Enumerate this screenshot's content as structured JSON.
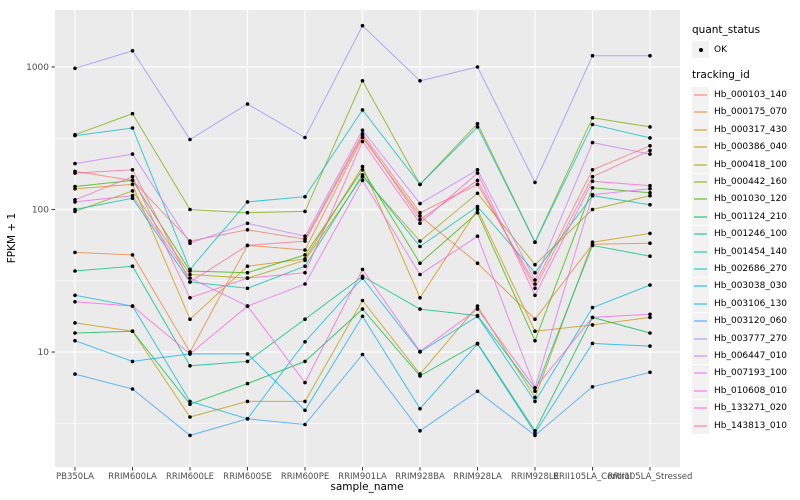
{
  "styles": {
    "panel_bg": "#EBEBEB",
    "grid_color": "#FFFFFF",
    "tick_mark_color": "#333333",
    "tick_label_color": "#4D4D4D",
    "axis_title_color": "#000000",
    "legend_key_bg": "#F2F2F2",
    "point_color": "#000000"
  },
  "chart_data": {
    "type": "line",
    "title": "",
    "xlabel": "sample_name",
    "ylabel": "FPKM + 1",
    "y_scale": "log10",
    "ylim": [
      1.56,
      2512
    ],
    "y_ticks": [
      10,
      100,
      1000
    ],
    "y_tick_labels": [
      "10",
      "100",
      "1000"
    ],
    "y_minor_gridlines": [
      3.162,
      31.62,
      316.2
    ],
    "grid": true,
    "legend_position": "right",
    "x_categories": [
      "PB350LA",
      "RRIM600LA",
      "RRIM600LE",
      "RRIM600SE",
      "RRIM600PE",
      "RRIM901LA",
      "RRIM928BA",
      "RRIM928LA",
      "RRIM928LE",
      "RRII105LA_Control",
      "RRII105LA_Stressed"
    ],
    "legend": {
      "quant_status_title": "quant_status",
      "quant_status_items": [
        {
          "label": "OK",
          "marker": "point"
        }
      ],
      "tracking_id_title": "tracking_id"
    },
    "series": [
      {
        "name": "Hb_000103_140",
        "color": "#F8766D",
        "values": [
          185,
          160,
          60,
          72,
          62,
          340,
          95,
          150,
          30,
          190,
          280
        ]
      },
      {
        "name": "Hb_000175_070",
        "color": "#EA8331",
        "values": [
          50,
          48,
          10,
          56,
          52,
          320,
          90,
          42,
          17,
          57,
          58
        ]
      },
      {
        "name": "Hb_000317_430",
        "color": "#D89000",
        "values": [
          140,
          150,
          17,
          40,
          45,
          200,
          24,
          100,
          14,
          15.5,
          17.5
        ]
      },
      {
        "name": "Hb_000386_040",
        "color": "#C09B00",
        "values": [
          16,
          14,
          3.5,
          4.5,
          4.5,
          23,
          7,
          21,
          4.8,
          59,
          68
        ]
      },
      {
        "name": "Hb_000418_100",
        "color": "#A3A500",
        "values": [
          97,
          135,
          35,
          33,
          44,
          170,
          60,
          130,
          41,
          100,
          125
        ]
      },
      {
        "name": "Hb_000442_160",
        "color": "#7CAE00",
        "values": [
          335,
          470,
          100,
          95,
          97,
          800,
          150,
          400,
          59,
          440,
          380
        ]
      },
      {
        "name": "Hb_001030_120",
        "color": "#39B600",
        "values": [
          145,
          160,
          37,
          36,
          48,
          190,
          42,
          95,
          12,
          142,
          131
        ]
      },
      {
        "name": "Hb_001124_210",
        "color": "#00BB4E",
        "values": [
          13.6,
          14,
          4.3,
          6,
          8.6,
          20,
          6.8,
          11.5,
          2.8,
          17.5,
          13.6
        ]
      },
      {
        "name": "Hb_001246_100",
        "color": "#00C087",
        "values": [
          37,
          40,
          8,
          8.6,
          17,
          34,
          20,
          18,
          5.3,
          56,
          47
        ]
      },
      {
        "name": "Hb_001454_140",
        "color": "#00C1A3",
        "values": [
          100,
          120,
          31,
          28,
          40,
          175,
          55,
          105,
          36,
          125,
          108
        ]
      },
      {
        "name": "Hb_002686_270",
        "color": "#00BFC4",
        "values": [
          330,
          373,
          38,
          113,
          123,
          500,
          150,
          380,
          59,
          395,
          318
        ]
      },
      {
        "name": "Hb_003038_030",
        "color": "#00BAE0",
        "values": [
          25,
          21,
          4.5,
          3.4,
          11.8,
          33,
          10,
          17.8,
          4.5,
          20.5,
          29.5
        ]
      },
      {
        "name": "Hb_003106_130",
        "color": "#00B0F6",
        "values": [
          12,
          8.6,
          9.7,
          9.7,
          3.9,
          17.8,
          4.0,
          11.4,
          2.7,
          11.5,
          11
        ]
      },
      {
        "name": "Hb_003120_060",
        "color": "#35A2FF",
        "values": [
          7,
          5.5,
          2.6,
          3.4,
          3.1,
          9.6,
          2.8,
          5.3,
          2.6,
          5.7,
          7.2
        ]
      },
      {
        "name": "Hb_003777_270",
        "color": "#9590FF",
        "values": [
          980,
          1300,
          310,
          550,
          320,
          1950,
          800,
          1000,
          155,
          1200,
          1200
        ]
      },
      {
        "name": "Hb_006447_010",
        "color": "#C77CFF",
        "values": [
          210,
          245,
          58,
          80,
          65,
          360,
          110,
          190,
          32,
          295,
          245
        ]
      },
      {
        "name": "Hb_007193_100",
        "color": "#E76BF3",
        "values": [
          113,
          125,
          33,
          21,
          30,
          160,
          35,
          65,
          5.6,
          127,
          140
        ]
      },
      {
        "name": "Hb_010608_010",
        "color": "#FA62DB",
        "values": [
          22.5,
          21,
          9.7,
          21,
          6.1,
          38,
          10.1,
          20,
          5.6,
          17.5,
          18.4
        ]
      },
      {
        "name": "Hb_133271_020",
        "color": "#FF61CC",
        "values": [
          117,
          170,
          24,
          33,
          36,
          300,
          80,
          180,
          25,
          158,
          147
        ]
      },
      {
        "name": "Hb_143813_010",
        "color": "#FF6A98",
        "values": [
          180,
          190,
          31,
          56,
          60,
          330,
          85,
          160,
          28,
          170,
          260
        ]
      }
    ]
  }
}
